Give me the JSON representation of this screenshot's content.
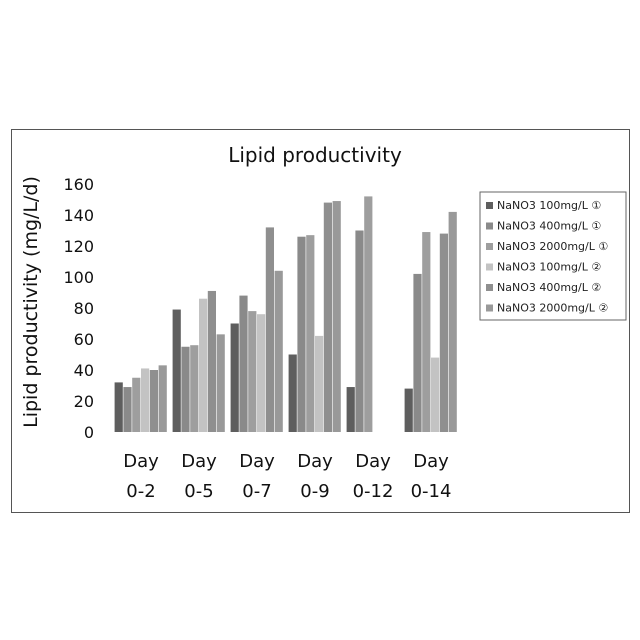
{
  "chart_data": {
    "type": "bar",
    "title": "Lipid productivity",
    "xlabel": "",
    "ylabel": "Lipid productivity (mg/L/d)",
    "ylim": [
      0,
      160
    ],
    "yticks": [
      0,
      20,
      40,
      60,
      80,
      100,
      120,
      140,
      160
    ],
    "grid": false,
    "legend_position": "right",
    "categories": [
      [
        "Day",
        "0-2"
      ],
      [
        "Day",
        "0-5"
      ],
      [
        "Day",
        "0-7"
      ],
      [
        "Day",
        "0-9"
      ],
      [
        "Day",
        "0-12"
      ],
      [
        "Day",
        "0-14"
      ]
    ],
    "series": [
      {
        "name": "NaNO3 100mg/L ①",
        "color": "#5e5e5e",
        "values": [
          32,
          79,
          70,
          50,
          29,
          28
        ]
      },
      {
        "name": "NaNO3 400mg/L ①",
        "color": "#8a8a8a",
        "values": [
          29,
          55,
          88,
          126,
          130,
          102
        ]
      },
      {
        "name": "NaNO3 2000mg/L ①",
        "color": "#9e9e9e",
        "values": [
          35,
          56,
          78,
          127,
          152,
          129
        ]
      },
      {
        "name": "NaNO3 100mg/L ②",
        "color": "#c3c3c3",
        "values": [
          41,
          86,
          76,
          62,
          null,
          48
        ]
      },
      {
        "name": "NaNO3 400mg/L ②",
        "color": "#8f8f8f",
        "values": [
          40,
          91,
          132,
          148,
          null,
          128
        ]
      },
      {
        "name": "NaNO3 2000mg/L ②",
        "color": "#999999",
        "values": [
          43,
          63,
          104,
          149,
          null,
          142
        ]
      }
    ]
  }
}
